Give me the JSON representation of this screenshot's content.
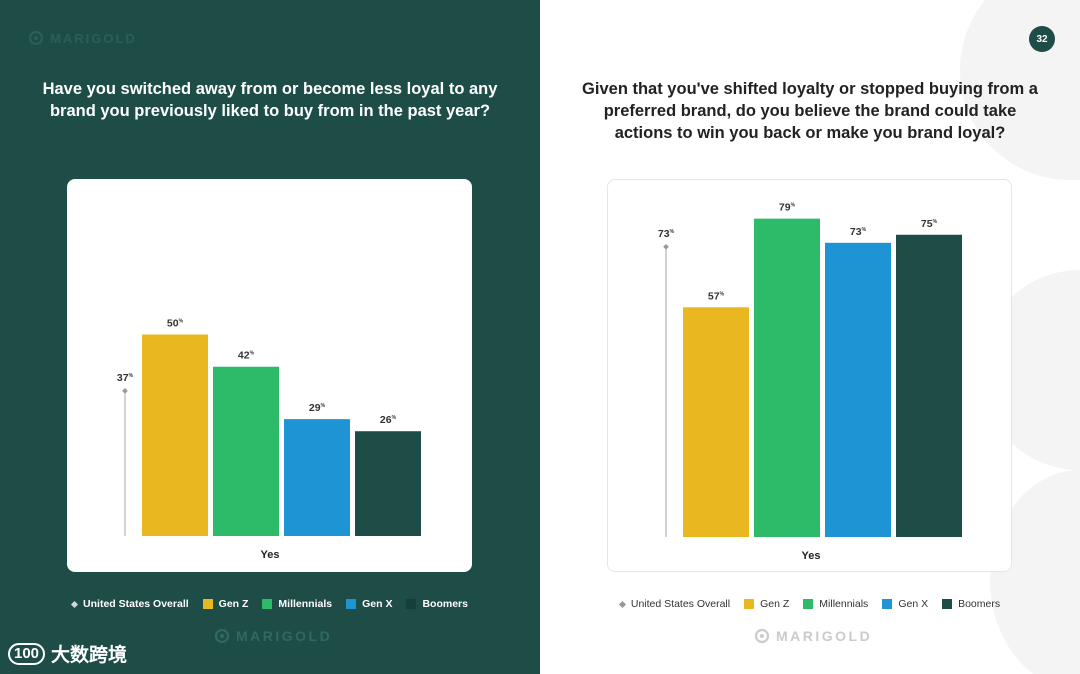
{
  "brand": {
    "logo_text": "MARIGOLD"
  },
  "page_number": "32",
  "watermark": {
    "icon": "100",
    "text": "大数跨境"
  },
  "legend": {
    "items": [
      {
        "label": "United States Overall",
        "marker": "diamond"
      },
      {
        "label": "Gen Z",
        "color": "#e9b820"
      },
      {
        "label": "Millennials",
        "color": "#2dbb6a"
      },
      {
        "label": "Gen X",
        "color": "#1f94d4"
      },
      {
        "label": "Boomers",
        "color": "#1d4d46"
      }
    ]
  },
  "colors": {
    "panel_dark": "#1d4d46",
    "gen_z": "#e9b820",
    "millennials": "#2dbb6a",
    "gen_x": "#1f94d4",
    "boomers": "#1d4d46"
  },
  "chart_data": [
    {
      "type": "bar",
      "title": "Have you switched away from or become less loyal to any brand you previously liked to buy from in the past year?",
      "categories": [
        "Yes"
      ],
      "series": [
        {
          "name": "Gen Z",
          "values": [
            50
          ]
        },
        {
          "name": "Millennials",
          "values": [
            42
          ]
        },
        {
          "name": "Gen X",
          "values": [
            29
          ]
        },
        {
          "name": "Boomers",
          "values": [
            26
          ]
        }
      ],
      "reference": {
        "name": "United States Overall",
        "value": 37
      },
      "value_suffix": "%",
      "xlabel": "Yes",
      "ylim": [
        0,
        80
      ]
    },
    {
      "type": "bar",
      "title": "Given that you've shifted loyalty or stopped buying from a preferred brand, do you believe the brand could take actions to win you back or make you brand loyal?",
      "categories": [
        "Yes"
      ],
      "series": [
        {
          "name": "Gen Z",
          "values": [
            57
          ]
        },
        {
          "name": "Millennials",
          "values": [
            79
          ]
        },
        {
          "name": "Gen X",
          "values": [
            73
          ]
        },
        {
          "name": "Boomers",
          "values": [
            75
          ]
        }
      ],
      "reference": {
        "name": "United States Overall",
        "value": 73
      },
      "value_suffix": "%",
      "xlabel": "Yes",
      "ylim": [
        0,
        80
      ]
    }
  ]
}
